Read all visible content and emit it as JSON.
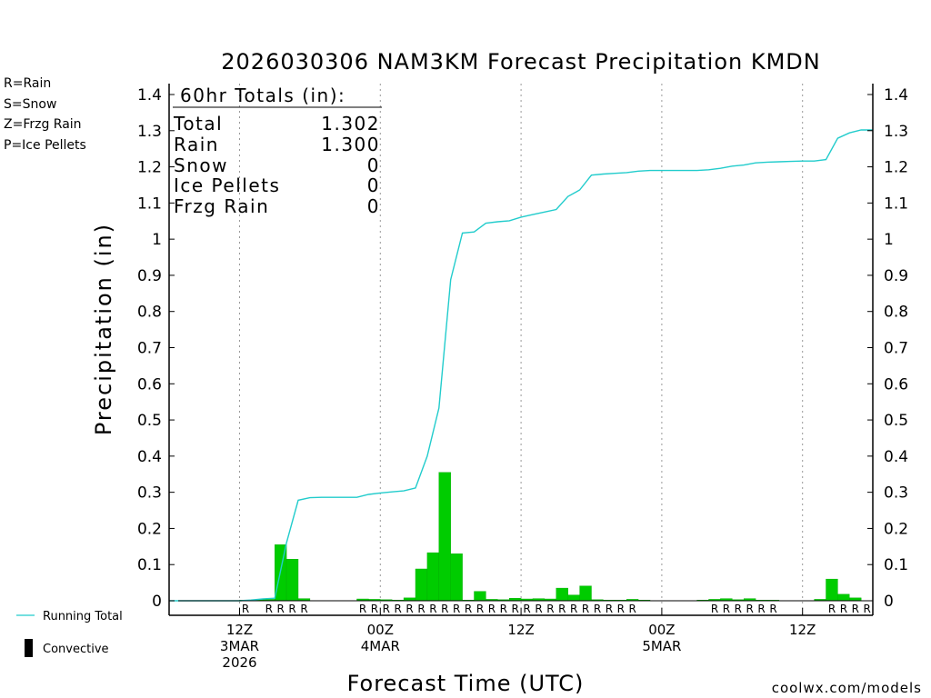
{
  "chart_data": {
    "type": "bar",
    "title": "2026030306 NAM3KM Forecast Precipitation KMDN",
    "xlabel": "Forecast Time (UTC)",
    "ylabel": "Precipitation (in)",
    "ylim": [
      0,
      1.4
    ],
    "y_ticks": [
      "0",
      "0.1",
      "0.2",
      "0.3",
      "0.4",
      "0.5",
      "0.6",
      "0.7",
      "0.8",
      "0.9",
      "1",
      "1.1",
      "1.2",
      "1.3",
      "1.4"
    ],
    "x_ticks": [
      {
        "hour": 6,
        "lines": [
          "12Z",
          "3MAR",
          "2026"
        ]
      },
      {
        "hour": 18,
        "lines": [
          "00Z",
          "4MAR"
        ]
      },
      {
        "hour": 30,
        "lines": [
          "12Z"
        ]
      },
      {
        "hour": 42,
        "lines": [
          "00Z",
          "5MAR"
        ]
      },
      {
        "hour": 54,
        "lines": [
          "12Z"
        ]
      }
    ],
    "xlim_hours": [
      -0.5,
      60
    ],
    "grid": "vertical dotted at tick hours",
    "totals_box": {
      "header": "60hr Totals (in):",
      "rows": [
        {
          "label": "Total",
          "value": "1.302"
        },
        {
          "label": "Rain",
          "value": "1.300"
        },
        {
          "label": "Snow",
          "value": "0"
        },
        {
          "label": "Ice Pellets",
          "value": "0"
        },
        {
          "label": "Frzg Rain",
          "value": "0"
        }
      ]
    },
    "precip_type_legend": [
      {
        "text": "R=Rain",
        "color": "#22cc22"
      },
      {
        "text": "S=Snow",
        "color": "#3333dd"
      },
      {
        "text": "Z=Frzg Rain",
        "color": "#ee8833"
      },
      {
        "text": "P=Ice Pellets",
        "color": "#dd1188"
      }
    ],
    "series_legend": [
      {
        "name": "Running Total",
        "kind": "line",
        "color": "#22cccc"
      },
      {
        "name": "Convective",
        "kind": "bar",
        "color": "#000000"
      }
    ],
    "bar_color": "#00cc00",
    "bars": [
      {
        "hour": 7,
        "value": 0.002
      },
      {
        "hour": 8,
        "value": 0.003
      },
      {
        "hour": 9,
        "value": 0.004
      },
      {
        "hour": 10,
        "value": 0.155
      },
      {
        "hour": 11,
        "value": 0.115
      },
      {
        "hour": 12,
        "value": 0.006
      },
      {
        "hour": 17,
        "value": 0.005
      },
      {
        "hour": 18,
        "value": 0.004
      },
      {
        "hour": 19,
        "value": 0.003
      },
      {
        "hour": 20,
        "value": 0.002
      },
      {
        "hour": 21,
        "value": 0.008
      },
      {
        "hour": 22,
        "value": 0.088
      },
      {
        "hour": 23,
        "value": 0.133
      },
      {
        "hour": 24,
        "value": 0.355
      },
      {
        "hour": 25,
        "value": 0.13
      },
      {
        "hour": 26,
        "value": 0.002
      },
      {
        "hour": 27,
        "value": 0.026
      },
      {
        "hour": 28,
        "value": 0.004
      },
      {
        "hour": 29,
        "value": 0.003
      },
      {
        "hour": 30,
        "value": 0.007
      },
      {
        "hour": 31,
        "value": 0.005
      },
      {
        "hour": 32,
        "value": 0.006
      },
      {
        "hour": 33,
        "value": 0.005
      },
      {
        "hour": 34,
        "value": 0.035
      },
      {
        "hour": 35,
        "value": 0.016
      },
      {
        "hour": 36,
        "value": 0.041
      },
      {
        "hour": 37,
        "value": 0.003
      },
      {
        "hour": 38,
        "value": 0.002
      },
      {
        "hour": 39,
        "value": 0.002
      },
      {
        "hour": 40,
        "value": 0.004
      },
      {
        "hour": 41,
        "value": 0.002
      },
      {
        "hour": 46,
        "value": 0.002
      },
      {
        "hour": 47,
        "value": 0.004
      },
      {
        "hour": 48,
        "value": 0.006
      },
      {
        "hour": 49,
        "value": 0.003
      },
      {
        "hour": 50,
        "value": 0.006
      },
      {
        "hour": 51,
        "value": 0.002
      },
      {
        "hour": 52,
        "value": 0.002
      },
      {
        "hour": 56,
        "value": 0.004
      },
      {
        "hour": 57,
        "value": 0.06
      },
      {
        "hour": 58,
        "value": 0.018
      },
      {
        "hour": 59,
        "value": 0.008
      }
    ],
    "running_total": {
      "name": "Running Total",
      "x": [
        0,
        3,
        6,
        7,
        8,
        9,
        10,
        11,
        12,
        13,
        14,
        15,
        16,
        17,
        18,
        19,
        20,
        21,
        22,
        23,
        24,
        25,
        26,
        27,
        28,
        29,
        30,
        31,
        32,
        33,
        34,
        35,
        36,
        37,
        38,
        39,
        40,
        41,
        42,
        44,
        45,
        46,
        47,
        48,
        49,
        50,
        51,
        52,
        53,
        54,
        55,
        56,
        57,
        58,
        59,
        60
      ],
      "y": [
        0,
        0,
        0,
        0.002,
        0.005,
        0.007,
        0.16,
        0.278,
        0.285,
        0.286,
        0.286,
        0.286,
        0.286,
        0.294,
        0.298,
        0.301,
        0.304,
        0.312,
        0.4,
        0.533,
        0.888,
        1.017,
        1.02,
        1.044,
        1.048,
        1.051,
        1.061,
        1.068,
        1.075,
        1.082,
        1.118,
        1.136,
        1.177,
        1.18,
        1.182,
        1.184,
        1.188,
        1.19,
        1.19,
        1.19,
        1.19,
        1.192,
        1.196,
        1.202,
        1.205,
        1.211,
        1.213,
        1.214,
        1.215,
        1.216,
        1.216,
        1.22,
        1.279,
        1.294,
        1.302,
        1.302
      ]
    },
    "type_row": [
      {
        "hour": 7,
        "letter": "R"
      },
      {
        "hour": 9,
        "letter": "R"
      },
      {
        "hour": 10,
        "letter": "R"
      },
      {
        "hour": 11,
        "letter": "R"
      },
      {
        "hour": 12,
        "letter": "R"
      },
      {
        "hour": 17,
        "letter": "R"
      },
      {
        "hour": 18,
        "letter": "R"
      },
      {
        "hour": 19,
        "letter": "R"
      },
      {
        "hour": 20,
        "letter": "R"
      },
      {
        "hour": 21,
        "letter": "R"
      },
      {
        "hour": 22,
        "letter": "R"
      },
      {
        "hour": 23,
        "letter": "R"
      },
      {
        "hour": 24,
        "letter": "R"
      },
      {
        "hour": 25,
        "letter": "R"
      },
      {
        "hour": 26,
        "letter": "R"
      },
      {
        "hour": 27,
        "letter": "R"
      },
      {
        "hour": 28,
        "letter": "R"
      },
      {
        "hour": 29,
        "letter": "R"
      },
      {
        "hour": 30,
        "letter": "R"
      },
      {
        "hour": 31,
        "letter": "R"
      },
      {
        "hour": 32,
        "letter": "R"
      },
      {
        "hour": 33,
        "letter": "R"
      },
      {
        "hour": 34,
        "letter": "R"
      },
      {
        "hour": 35,
        "letter": "R"
      },
      {
        "hour": 36,
        "letter": "R"
      },
      {
        "hour": 37,
        "letter": "R"
      },
      {
        "hour": 38,
        "letter": "R"
      },
      {
        "hour": 39,
        "letter": "R"
      },
      {
        "hour": 40,
        "letter": "R"
      },
      {
        "hour": 47,
        "letter": "R"
      },
      {
        "hour": 48,
        "letter": "R"
      },
      {
        "hour": 49,
        "letter": "R"
      },
      {
        "hour": 50,
        "letter": "R"
      },
      {
        "hour": 51,
        "letter": "R"
      },
      {
        "hour": 52,
        "letter": "R"
      },
      {
        "hour": 57,
        "letter": "R"
      },
      {
        "hour": 58,
        "letter": "R"
      },
      {
        "hour": 59,
        "letter": "R"
      },
      {
        "hour": 60,
        "letter": "R"
      }
    ],
    "credit": "coolwx.com/models"
  }
}
